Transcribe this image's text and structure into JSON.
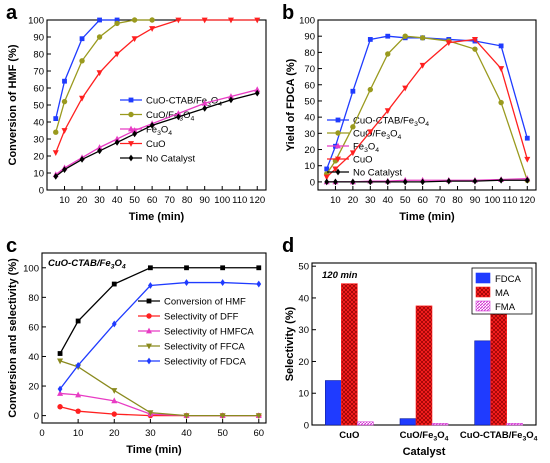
{
  "chart_data": [
    {
      "panel_label": "a",
      "type": "line",
      "xlabel": "Time (min)",
      "ylabel": "Conversion of HMF (%)",
      "xlim": [
        0,
        125
      ],
      "ylim": [
        0,
        100
      ],
      "xticks": [
        10,
        20,
        30,
        40,
        50,
        60,
        70,
        80,
        90,
        100,
        110,
        120
      ],
      "yticks": [
        0,
        10,
        20,
        30,
        40,
        50,
        60,
        70,
        80,
        90,
        100
      ],
      "legend_position": "bottom-right",
      "series": [
        {
          "name": "CuO-CTAB/Fe",
          "name_sub": "3",
          "name_tail": "O",
          "name_sub2": "4",
          "color": "#1f3bff",
          "marker": "square",
          "x": [
            5,
            10,
            20,
            30,
            40
          ],
          "y": [
            42,
            64,
            89,
            100,
            100
          ]
        },
        {
          "name": "CuO/Fe",
          "name_sub": "3",
          "name_tail": "O",
          "name_sub2": "4",
          "color": "#9a9a1e",
          "marker": "circle",
          "x": [
            5,
            10,
            20,
            30,
            40,
            50,
            60
          ],
          "y": [
            34,
            52,
            76,
            90,
            98,
            100,
            100
          ]
        },
        {
          "name": "Fe",
          "name_sub": "3",
          "name_tail": "O",
          "name_sub2": "4",
          "color": "#e83cc4",
          "marker": "triangle-up",
          "x": [
            5,
            10,
            20,
            30,
            40,
            50,
            60,
            75,
            90,
            105,
            120
          ],
          "y": [
            9,
            13,
            19,
            25,
            30,
            35,
            39,
            45,
            51,
            55,
            59
          ]
        },
        {
          "name": "CuO",
          "color": "#ff2020",
          "marker": "triangle-down",
          "x": [
            5,
            10,
            20,
            30,
            40,
            50,
            60,
            75,
            90,
            105,
            120
          ],
          "y": [
            22,
            35,
            54,
            69,
            80,
            89,
            95,
            100,
            100,
            100,
            100
          ]
        },
        {
          "name": "No Catalyst",
          "color": "#000000",
          "marker": "diamond",
          "x": [
            5,
            10,
            20,
            30,
            40,
            50,
            60,
            75,
            90,
            105,
            120
          ],
          "y": [
            8,
            12,
            18,
            23,
            28,
            33,
            38,
            43,
            48,
            53,
            57
          ]
        }
      ]
    },
    {
      "panel_label": "b",
      "type": "line",
      "xlabel": "Time (min)",
      "ylabel": "Yield of FDCA (%)",
      "xlim": [
        0,
        125
      ],
      "ylim": [
        -5,
        100
      ],
      "xticks": [
        10,
        20,
        30,
        40,
        50,
        60,
        70,
        80,
        90,
        100,
        110,
        120
      ],
      "yticks": [
        0,
        10,
        20,
        30,
        40,
        50,
        60,
        70,
        80,
        90,
        100
      ],
      "legend_position": "bottom-left",
      "series": [
        {
          "name": "CuO-CTAB/Fe",
          "name_sub": "3",
          "name_tail": "O",
          "name_sub2": "4",
          "color": "#1f3bff",
          "marker": "square",
          "x": [
            5,
            10,
            20,
            30,
            40,
            50,
            60,
            75,
            90,
            105,
            120
          ],
          "y": [
            8,
            22,
            56,
            88,
            90,
            89,
            89,
            88,
            87,
            84,
            27
          ]
        },
        {
          "name": "CuO/Fe",
          "name_sub": "3",
          "name_tail": "O",
          "name_sub2": "4",
          "color": "#9a9a1e",
          "marker": "circle",
          "x": [
            5,
            10,
            20,
            30,
            40,
            50,
            60,
            75,
            90,
            105,
            120
          ],
          "y": [
            5,
            13,
            34,
            57,
            79,
            90,
            89,
            87,
            82,
            49,
            1
          ]
        },
        {
          "name": "Fe",
          "name_sub": "3",
          "name_tail": "O",
          "name_sub2": "4",
          "color": "#e83cc4",
          "marker": "triangle-up",
          "x": [
            5,
            10,
            20,
            30,
            40,
            50,
            60,
            75,
            90,
            105,
            120
          ],
          "y": [
            0,
            0,
            0,
            0.5,
            0.5,
            1,
            1,
            1,
            1,
            1.5,
            2
          ]
        },
        {
          "name": "CuO",
          "color": "#ff2020",
          "marker": "triangle-down",
          "x": [
            5,
            10,
            20,
            30,
            40,
            50,
            60,
            75,
            90,
            105,
            120
          ],
          "y": [
            3,
            8,
            18,
            31,
            44,
            58,
            72,
            86,
            88,
            70,
            14
          ]
        },
        {
          "name": "No Catalyst",
          "color": "#000000",
          "marker": "diamond",
          "x": [
            5,
            10,
            20,
            30,
            40,
            50,
            60,
            75,
            90,
            105,
            120
          ],
          "y": [
            0,
            0,
            0,
            0,
            0,
            0,
            0,
            0.5,
            0.5,
            1,
            1
          ]
        }
      ]
    },
    {
      "panel_label": "c",
      "type": "line",
      "annotation": "CuO-CTAB/Fe",
      "annotation_sub": "3",
      "annotation_tail": "O",
      "annotation_sub2": "4",
      "xlabel": "Time (min)",
      "ylabel": "Conversion and selectivity (%)",
      "xlim": [
        0,
        62
      ],
      "ylim": [
        -5,
        110
      ],
      "xticks": [
        0,
        10,
        20,
        30,
        40,
        50,
        60
      ],
      "yticks": [
        0,
        20,
        40,
        60,
        80,
        100
      ],
      "legend_position": "right",
      "series": [
        {
          "name": "Conversion of HMF",
          "color": "#000000",
          "marker": "square",
          "x": [
            5,
            10,
            20,
            30,
            40,
            50,
            60
          ],
          "y": [
            42,
            64,
            89,
            100,
            100,
            100,
            100
          ]
        },
        {
          "name": "Selectivity of DFF",
          "color": "#ff2020",
          "marker": "circle",
          "x": [
            5,
            10,
            20,
            30,
            40,
            50,
            60
          ],
          "y": [
            6,
            3,
            1,
            0,
            0,
            0,
            0
          ]
        },
        {
          "name": "Selectivity of HMFCA",
          "color": "#e83cc4",
          "marker": "triangle-up",
          "x": [
            5,
            10,
            20,
            30,
            40,
            50,
            60
          ],
          "y": [
            15,
            14,
            10,
            1,
            0,
            0,
            0
          ]
        },
        {
          "name": "Selectivity of FFCA",
          "color": "#8a8a1e",
          "marker": "triangle-down",
          "x": [
            5,
            10,
            20,
            30,
            40,
            50,
            60
          ],
          "y": [
            37,
            33,
            17,
            2,
            0,
            0,
            0
          ]
        },
        {
          "name": "Selectivity of FDCA",
          "color": "#1f3bff",
          "marker": "diamond",
          "x": [
            5,
            10,
            20,
            30,
            40,
            50,
            60
          ],
          "y": [
            18,
            34,
            62,
            88,
            90,
            90,
            89
          ]
        }
      ]
    },
    {
      "panel_label": "d",
      "type": "bar",
      "annotation": "120 min",
      "xlabel": "Catalyst",
      "ylabel": "Selectivity (%)",
      "ylim": [
        0,
        51
      ],
      "yticks": [
        0,
        10,
        20,
        30,
        40,
        50
      ],
      "legend_position": "top-right",
      "categories": [
        {
          "label": "CuO"
        },
        {
          "label": "CuO/Fe",
          "sub": "3",
          "tail": "O",
          "sub2": "4"
        },
        {
          "label": "CuO-CTAB/Fe",
          "sub": "3",
          "tail": "O",
          "sub2": "4"
        }
      ],
      "series": [
        {
          "name": "FDCA",
          "color": "#1f3bff",
          "hatch": "none",
          "values": [
            14,
            2,
            26.5
          ]
        },
        {
          "name": "MA",
          "color": "#ff2020",
          "hatch": "cross",
          "values": [
            44.5,
            37.5,
            37.5
          ]
        },
        {
          "name": "FMA",
          "color": "#d43ad4",
          "hatch": "diagonal",
          "values": [
            1,
            0.5,
            0.5
          ]
        }
      ]
    }
  ]
}
